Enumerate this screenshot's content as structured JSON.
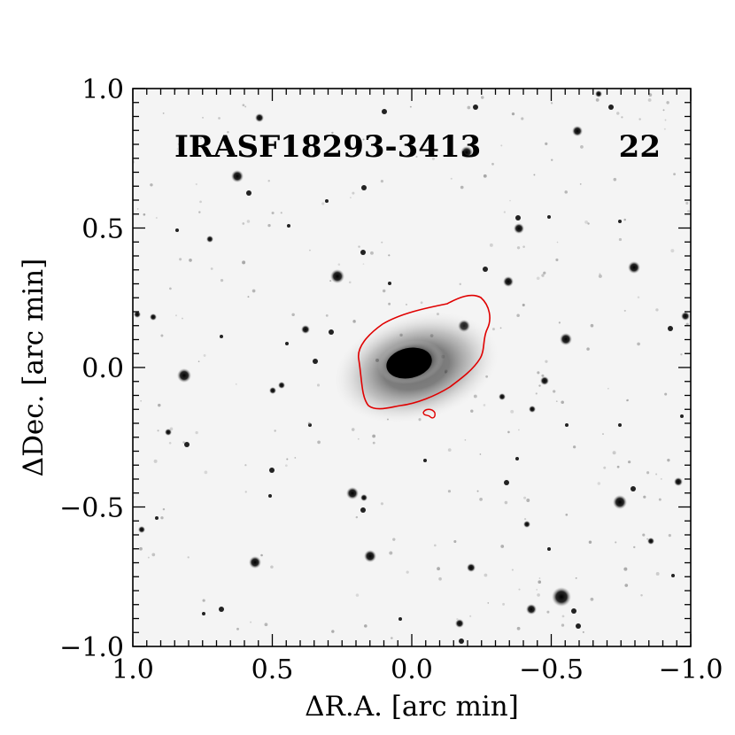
{
  "figure": {
    "object_name": "IRASF18293-3413",
    "panel_number": "22",
    "xlabel": "ΔR.A. [arc min]",
    "ylabel": "ΔDec. [arc min]",
    "xlim": [
      1.0,
      -1.0
    ],
    "ylim": [
      -1.0,
      1.0
    ],
    "x_tick_labels": [
      "1.0",
      "0.5",
      "0.0",
      "−0.5",
      "−1.0"
    ],
    "y_tick_labels": [
      "1.0",
      "0.5",
      "0.0",
      "−0.5",
      "−1.0"
    ],
    "contour_color": "#e00000",
    "background_color": "#f4f4f4",
    "source_color": "#000000",
    "colormap": "inverted-grayscale"
  }
}
